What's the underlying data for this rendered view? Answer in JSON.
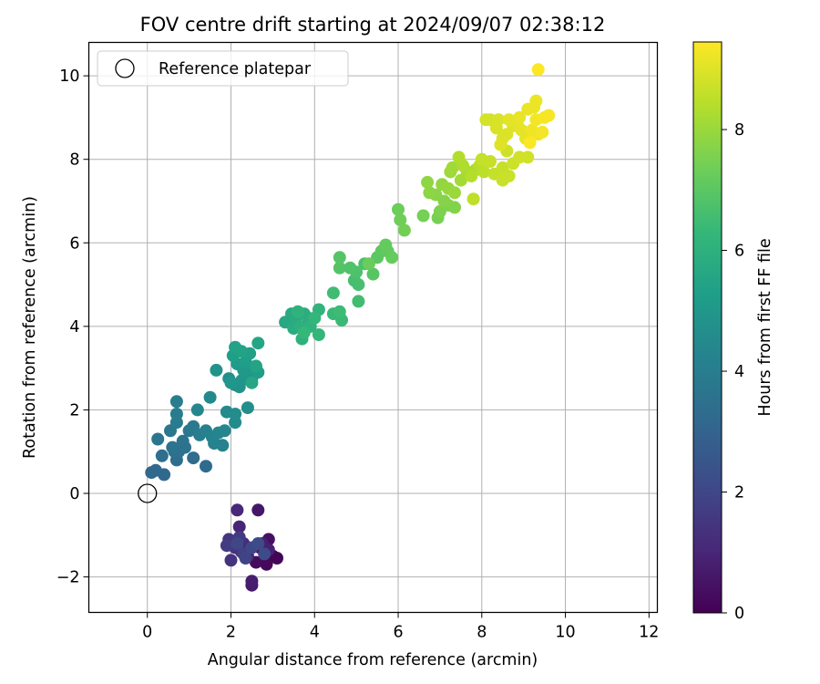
{
  "chart_data": {
    "type": "scatter",
    "title": "FOV centre drift starting at 2024/09/07 02:38:12",
    "xlabel": "Angular distance from reference (arcmin)",
    "ylabel": "Rotation from reference (arcmin)",
    "xlim": [
      -1.4,
      12.2
    ],
    "ylim": [
      -2.85,
      10.8
    ],
    "xticks": [
      0,
      2,
      4,
      6,
      8,
      10,
      12
    ],
    "yticks": [
      -2,
      0,
      2,
      4,
      6,
      8,
      10
    ],
    "tick_labels_x": [
      "0",
      "2",
      "4",
      "6",
      "8",
      "10",
      "12"
    ],
    "tick_labels_y": [
      "−2",
      "0",
      "2",
      "4",
      "6",
      "8",
      "10"
    ],
    "grid": true,
    "legend": {
      "position": "top-left",
      "entries": [
        {
          "label": "Reference platepar",
          "marker": "open-circle",
          "color": "#000000"
        }
      ]
    },
    "reference_point": {
      "x": 0,
      "y": 0,
      "label": "Reference platepar"
    },
    "colorbar": {
      "label": "Hours from first FF file",
      "min": 0,
      "max": 9.45,
      "colormap": "viridis",
      "ticks": [
        0,
        2,
        4,
        6,
        8
      ],
      "tick_labels": [
        "0",
        "2",
        "4",
        "6",
        "8"
      ]
    },
    "colormap_stops": [
      "#440154",
      "#482878",
      "#3e4a89",
      "#31688e",
      "#26828e",
      "#1f9e89",
      "#35b779",
      "#6ece58",
      "#b5de2b",
      "#fde725"
    ],
    "points": [
      {
        "x": 3.0,
        "y": -1.5,
        "c": 0.0
      },
      {
        "x": 3.1,
        "y": -1.55,
        "c": 0.1
      },
      {
        "x": 2.85,
        "y": -1.7,
        "c": 0.2
      },
      {
        "x": 2.6,
        "y": -1.65,
        "c": 0.3
      },
      {
        "x": 2.9,
        "y": -1.1,
        "c": 0.4
      },
      {
        "x": 2.7,
        "y": -1.3,
        "c": 0.5
      },
      {
        "x": 2.65,
        "y": -0.4,
        "c": 0.6
      },
      {
        "x": 2.5,
        "y": -2.2,
        "c": 0.7
      },
      {
        "x": 2.5,
        "y": -2.1,
        "c": 0.75
      },
      {
        "x": 2.75,
        "y": -1.2,
        "c": 0.8
      },
      {
        "x": 2.9,
        "y": -1.35,
        "c": 0.85
      },
      {
        "x": 2.4,
        "y": -1.5,
        "c": 0.9
      },
      {
        "x": 2.2,
        "y": -0.8,
        "c": 1.0
      },
      {
        "x": 2.15,
        "y": -0.4,
        "c": 1.05
      },
      {
        "x": 2.3,
        "y": -1.2,
        "c": 1.1
      },
      {
        "x": 2.1,
        "y": -1.3,
        "c": 1.2
      },
      {
        "x": 2.25,
        "y": -1.4,
        "c": 1.3
      },
      {
        "x": 2.0,
        "y": -1.6,
        "c": 1.4
      },
      {
        "x": 1.95,
        "y": -1.1,
        "c": 1.5
      },
      {
        "x": 2.05,
        "y": -1.25,
        "c": 1.55
      },
      {
        "x": 2.2,
        "y": -1.05,
        "c": 1.6
      },
      {
        "x": 1.9,
        "y": -1.25,
        "c": 1.7
      },
      {
        "x": 2.3,
        "y": -1.45,
        "c": 1.8
      },
      {
        "x": 2.35,
        "y": -1.55,
        "c": 1.9
      },
      {
        "x": 2.15,
        "y": -1.2,
        "c": 2.0
      },
      {
        "x": 2.5,
        "y": -1.3,
        "c": 2.05
      },
      {
        "x": 2.8,
        "y": -1.45,
        "c": 2.1
      },
      {
        "x": 2.65,
        "y": -1.2,
        "c": 2.15
      },
      {
        "x": 0.1,
        "y": 0.5,
        "c": 3.1
      },
      {
        "x": 0.2,
        "y": 0.55,
        "c": 3.15
      },
      {
        "x": 0.4,
        "y": 0.45,
        "c": 3.2
      },
      {
        "x": 1.4,
        "y": 0.65,
        "c": 3.25
      },
      {
        "x": 1.1,
        "y": 0.85,
        "c": 3.3
      },
      {
        "x": 0.7,
        "y": 0.8,
        "c": 3.35
      },
      {
        "x": 0.35,
        "y": 0.9,
        "c": 3.4
      },
      {
        "x": 0.65,
        "y": 1.0,
        "c": 3.45
      },
      {
        "x": 0.75,
        "y": 1.0,
        "c": 3.5
      },
      {
        "x": 0.9,
        "y": 1.1,
        "c": 3.55
      },
      {
        "x": 0.85,
        "y": 1.25,
        "c": 3.6
      },
      {
        "x": 0.6,
        "y": 1.1,
        "c": 3.65
      },
      {
        "x": 0.25,
        "y": 1.3,
        "c": 3.7
      },
      {
        "x": 0.55,
        "y": 1.5,
        "c": 3.75
      },
      {
        "x": 1.0,
        "y": 1.5,
        "c": 3.8
      },
      {
        "x": 1.1,
        "y": 1.6,
        "c": 3.85
      },
      {
        "x": 0.7,
        "y": 1.7,
        "c": 3.9
      },
      {
        "x": 0.7,
        "y": 1.9,
        "c": 3.95
      },
      {
        "x": 0.7,
        "y": 2.2,
        "c": 4.0
      },
      {
        "x": 1.25,
        "y": 1.4,
        "c": 4.05
      },
      {
        "x": 1.4,
        "y": 1.5,
        "c": 4.1
      },
      {
        "x": 1.6,
        "y": 1.2,
        "c": 4.15
      },
      {
        "x": 1.8,
        "y": 1.15,
        "c": 4.2
      },
      {
        "x": 1.55,
        "y": 1.35,
        "c": 4.25
      },
      {
        "x": 1.7,
        "y": 1.45,
        "c": 4.3
      },
      {
        "x": 1.85,
        "y": 1.5,
        "c": 4.35
      },
      {
        "x": 1.2,
        "y": 2.0,
        "c": 4.4
      },
      {
        "x": 1.5,
        "y": 2.3,
        "c": 4.45
      },
      {
        "x": 1.9,
        "y": 1.95,
        "c": 4.5
      },
      {
        "x": 2.1,
        "y": 1.7,
        "c": 4.55
      },
      {
        "x": 2.1,
        "y": 1.9,
        "c": 4.6
      },
      {
        "x": 2.4,
        "y": 2.05,
        "c": 4.65
      },
      {
        "x": 1.95,
        "y": 2.75,
        "c": 4.7
      },
      {
        "x": 2.1,
        "y": 2.6,
        "c": 4.75
      },
      {
        "x": 2.2,
        "y": 2.55,
        "c": 4.8
      },
      {
        "x": 1.65,
        "y": 2.95,
        "c": 4.85
      },
      {
        "x": 2.25,
        "y": 2.7,
        "c": 4.9
      },
      {
        "x": 2.0,
        "y": 2.65,
        "c": 4.95
      },
      {
        "x": 2.4,
        "y": 2.8,
        "c": 5.0
      },
      {
        "x": 2.5,
        "y": 2.75,
        "c": 5.0
      },
      {
        "x": 2.3,
        "y": 2.95,
        "c": 5.05
      },
      {
        "x": 2.15,
        "y": 3.1,
        "c": 5.1
      },
      {
        "x": 2.55,
        "y": 3.0,
        "c": 5.15
      },
      {
        "x": 2.65,
        "y": 2.9,
        "c": 5.2
      },
      {
        "x": 2.35,
        "y": 3.15,
        "c": 5.25
      },
      {
        "x": 2.05,
        "y": 3.3,
        "c": 5.3
      },
      {
        "x": 2.45,
        "y": 3.35,
        "c": 5.35
      },
      {
        "x": 2.1,
        "y": 3.5,
        "c": 5.4
      },
      {
        "x": 2.25,
        "y": 3.4,
        "c": 5.45
      },
      {
        "x": 2.6,
        "y": 3.05,
        "c": 5.5
      },
      {
        "x": 2.65,
        "y": 3.6,
        "c": 5.55
      },
      {
        "x": 2.5,
        "y": 2.65,
        "c": 5.6
      },
      {
        "x": 3.3,
        "y": 4.1,
        "c": 5.65
      },
      {
        "x": 3.45,
        "y": 4.3,
        "c": 5.7
      },
      {
        "x": 3.55,
        "y": 4.2,
        "c": 5.75
      },
      {
        "x": 3.5,
        "y": 3.95,
        "c": 5.8
      },
      {
        "x": 3.75,
        "y": 4.3,
        "c": 5.85
      },
      {
        "x": 3.85,
        "y": 4.2,
        "c": 5.9
      },
      {
        "x": 3.65,
        "y": 4.0,
        "c": 5.95
      },
      {
        "x": 3.7,
        "y": 3.7,
        "c": 6.0
      },
      {
        "x": 3.9,
        "y": 4.0,
        "c": 6.05
      },
      {
        "x": 3.6,
        "y": 4.35,
        "c": 6.1
      },
      {
        "x": 4.1,
        "y": 4.4,
        "c": 6.15
      },
      {
        "x": 4.0,
        "y": 4.2,
        "c": 6.2
      },
      {
        "x": 4.1,
        "y": 3.8,
        "c": 6.25
      },
      {
        "x": 3.75,
        "y": 3.85,
        "c": 6.3
      },
      {
        "x": 4.45,
        "y": 4.3,
        "c": 6.35
      },
      {
        "x": 4.65,
        "y": 4.15,
        "c": 6.4
      },
      {
        "x": 4.6,
        "y": 4.35,
        "c": 6.45
      },
      {
        "x": 4.45,
        "y": 4.8,
        "c": 6.5
      },
      {
        "x": 5.05,
        "y": 4.6,
        "c": 6.55
      },
      {
        "x": 4.95,
        "y": 5.1,
        "c": 6.6
      },
      {
        "x": 5.05,
        "y": 5.0,
        "c": 6.65
      },
      {
        "x": 5.2,
        "y": 5.5,
        "c": 6.7
      },
      {
        "x": 5.0,
        "y": 5.3,
        "c": 6.75
      },
      {
        "x": 4.85,
        "y": 5.4,
        "c": 6.8
      },
      {
        "x": 4.6,
        "y": 5.4,
        "c": 6.85
      },
      {
        "x": 4.6,
        "y": 5.65,
        "c": 6.9
      },
      {
        "x": 5.4,
        "y": 5.25,
        "c": 6.95
      },
      {
        "x": 5.5,
        "y": 5.65,
        "c": 7.0
      },
      {
        "x": 5.6,
        "y": 5.8,
        "c": 7.05
      },
      {
        "x": 5.75,
        "y": 5.8,
        "c": 7.1
      },
      {
        "x": 5.7,
        "y": 5.95,
        "c": 7.15
      },
      {
        "x": 5.85,
        "y": 5.65,
        "c": 7.2
      },
      {
        "x": 5.3,
        "y": 5.5,
        "c": 7.25
      },
      {
        "x": 6.0,
        "y": 6.8,
        "c": 7.3
      },
      {
        "x": 6.05,
        "y": 6.55,
        "c": 7.35
      },
      {
        "x": 6.15,
        "y": 6.3,
        "c": 7.4
      },
      {
        "x": 6.6,
        "y": 6.65,
        "c": 7.45
      },
      {
        "x": 6.95,
        "y": 6.6,
        "c": 7.5
      },
      {
        "x": 7.0,
        "y": 6.75,
        "c": 7.55
      },
      {
        "x": 7.2,
        "y": 6.9,
        "c": 7.6
      },
      {
        "x": 7.35,
        "y": 6.85,
        "c": 7.65
      },
      {
        "x": 7.1,
        "y": 7.0,
        "c": 7.7
      },
      {
        "x": 6.9,
        "y": 7.15,
        "c": 7.75
      },
      {
        "x": 6.75,
        "y": 7.2,
        "c": 7.8
      },
      {
        "x": 6.7,
        "y": 7.45,
        "c": 7.85
      },
      {
        "x": 7.05,
        "y": 7.4,
        "c": 7.9
      },
      {
        "x": 7.2,
        "y": 7.3,
        "c": 7.95
      },
      {
        "x": 7.35,
        "y": 7.2,
        "c": 8.0
      },
      {
        "x": 7.25,
        "y": 7.7,
        "c": 8.05
      },
      {
        "x": 7.3,
        "y": 7.8,
        "c": 8.1
      },
      {
        "x": 7.5,
        "y": 7.5,
        "c": 8.15
      },
      {
        "x": 7.65,
        "y": 7.7,
        "c": 8.2
      },
      {
        "x": 7.85,
        "y": 7.75,
        "c": 8.25
      },
      {
        "x": 7.55,
        "y": 7.85,
        "c": 8.3
      },
      {
        "x": 7.45,
        "y": 8.05,
        "c": 8.35
      },
      {
        "x": 7.75,
        "y": 7.6,
        "c": 8.4
      },
      {
        "x": 7.95,
        "y": 7.85,
        "c": 8.45
      },
      {
        "x": 8.05,
        "y": 7.7,
        "c": 8.5
      },
      {
        "x": 7.8,
        "y": 7.05,
        "c": 8.55
      },
      {
        "x": 8.0,
        "y": 8.0,
        "c": 8.6
      },
      {
        "x": 8.3,
        "y": 7.65,
        "c": 8.6
      },
      {
        "x": 8.5,
        "y": 7.8,
        "c": 8.65
      },
      {
        "x": 8.2,
        "y": 7.95,
        "c": 8.65
      },
      {
        "x": 8.5,
        "y": 7.5,
        "c": 8.7
      },
      {
        "x": 8.65,
        "y": 7.6,
        "c": 8.7
      },
      {
        "x": 8.75,
        "y": 7.9,
        "c": 8.75
      },
      {
        "x": 8.6,
        "y": 8.2,
        "c": 8.75
      },
      {
        "x": 8.9,
        "y": 8.05,
        "c": 8.8
      },
      {
        "x": 9.1,
        "y": 8.05,
        "c": 8.8
      },
      {
        "x": 8.1,
        "y": 8.95,
        "c": 8.85
      },
      {
        "x": 8.2,
        "y": 8.95,
        "c": 8.85
      },
      {
        "x": 8.4,
        "y": 8.95,
        "c": 8.9
      },
      {
        "x": 8.35,
        "y": 8.75,
        "c": 8.9
      },
      {
        "x": 8.5,
        "y": 8.5,
        "c": 8.95
      },
      {
        "x": 8.6,
        "y": 8.6,
        "c": 8.95
      },
      {
        "x": 8.45,
        "y": 8.35,
        "c": 9.0
      },
      {
        "x": 8.75,
        "y": 8.8,
        "c": 9.0
      },
      {
        "x": 8.85,
        "y": 8.85,
        "c": 9.05
      },
      {
        "x": 8.65,
        "y": 8.95,
        "c": 9.05
      },
      {
        "x": 8.95,
        "y": 8.7,
        "c": 9.1
      },
      {
        "x": 9.05,
        "y": 8.5,
        "c": 9.1
      },
      {
        "x": 8.9,
        "y": 9.0,
        "c": 9.15
      },
      {
        "x": 9.1,
        "y": 9.2,
        "c": 9.15
      },
      {
        "x": 9.25,
        "y": 9.25,
        "c": 9.2
      },
      {
        "x": 9.3,
        "y": 9.4,
        "c": 9.2
      },
      {
        "x": 9.2,
        "y": 8.7,
        "c": 9.25
      },
      {
        "x": 9.35,
        "y": 8.6,
        "c": 9.25
      },
      {
        "x": 9.45,
        "y": 8.65,
        "c": 9.3
      },
      {
        "x": 9.3,
        "y": 8.95,
        "c": 9.3
      },
      {
        "x": 9.5,
        "y": 9.0,
        "c": 9.35
      },
      {
        "x": 9.6,
        "y": 9.05,
        "c": 9.35
      },
      {
        "x": 9.15,
        "y": 8.4,
        "c": 9.4
      },
      {
        "x": 9.35,
        "y": 10.15,
        "c": 9.45
      }
    ]
  }
}
